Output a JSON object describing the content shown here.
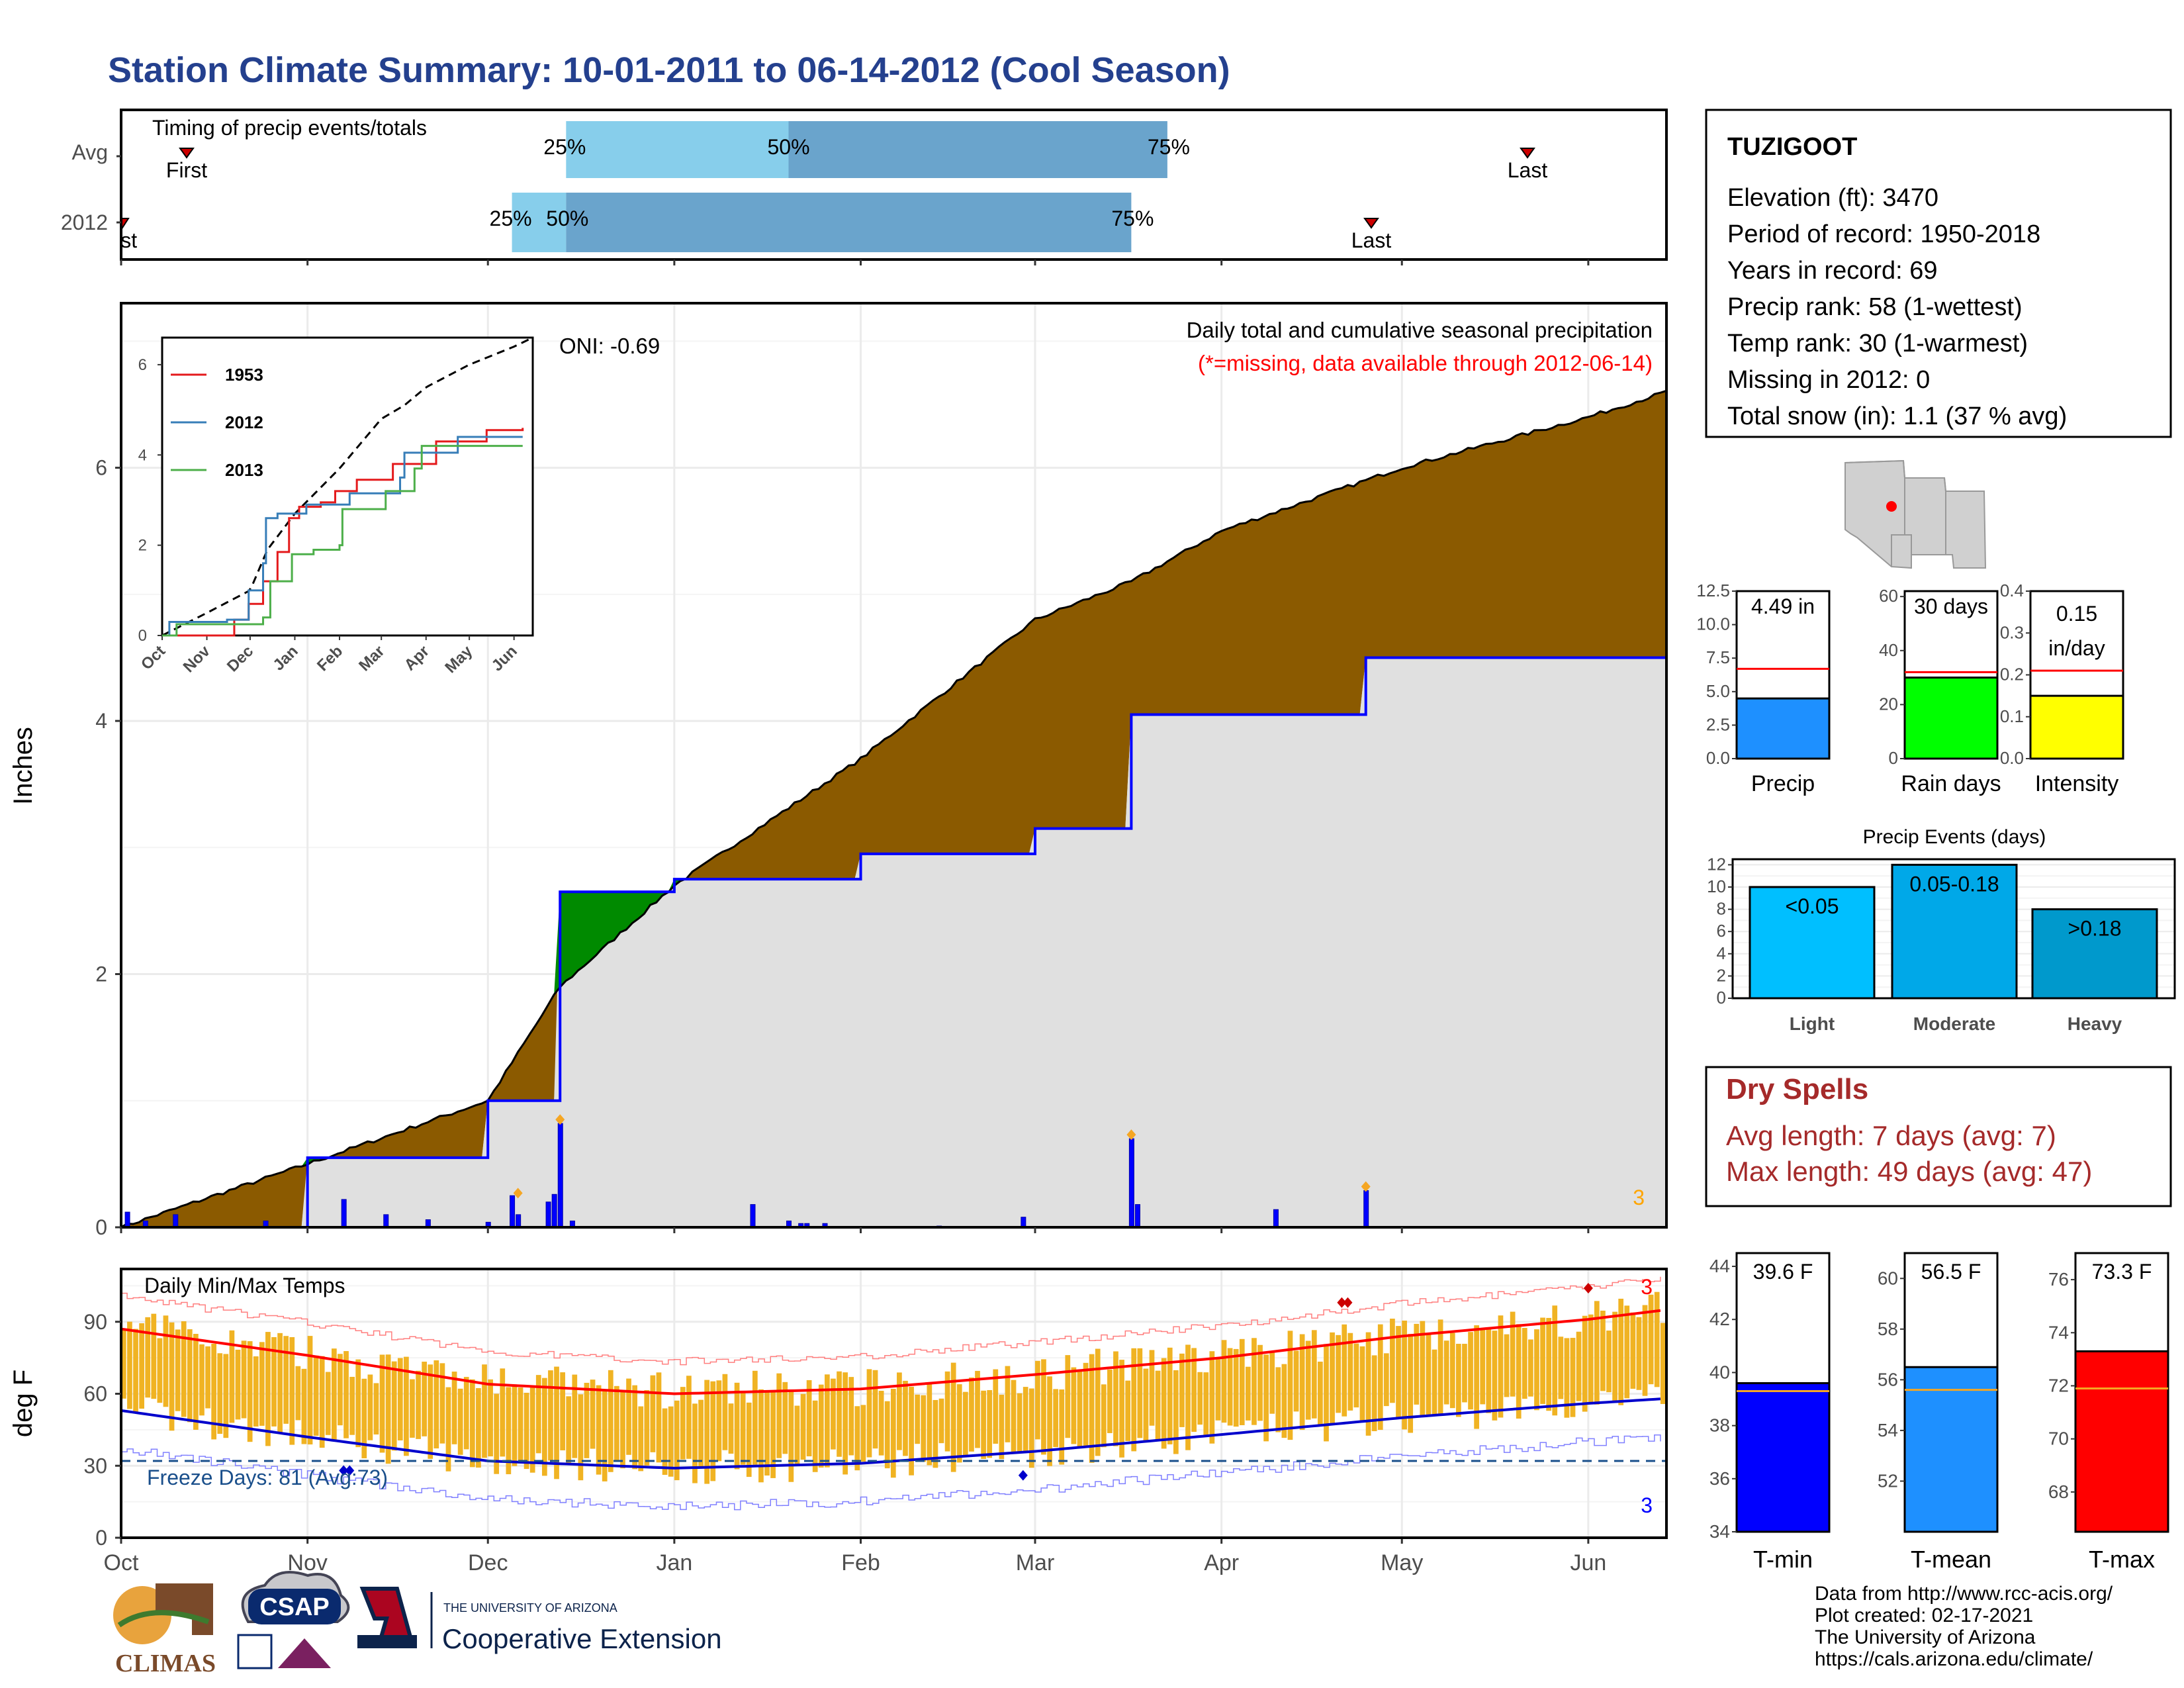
{
  "title": "Station Climate Summary: 10-01-2011 to 06-14-2012 (Cool Season)",
  "colors": {
    "title": "#24408e",
    "cumulative_above": "#8b5a00",
    "cumulative_green": "#008a00",
    "normal_fill": "#e0e0e0",
    "daily_bar": "#0000ff",
    "temp_bar": "#f0b323",
    "precip_bar": "#1e90ff",
    "raindays_bar": "#00ff00",
    "intensity_bar": "#ffff00",
    "light_bar": "#00bfff",
    "moderate_bar": "#00a8e8",
    "heavy_bar": "#0099cc",
    "tmin_bar": "#0000ff",
    "tmean_bar": "#1e90ff",
    "tmax_bar": "#ff0000",
    "dry_spell_text": "#a52a2a"
  },
  "timing_panel": {
    "label": "Timing of precip events/totals",
    "rows": [
      {
        "label": "Avg",
        "first": "First",
        "last": "Last",
        "p25": "25%",
        "p50": "50%",
        "p75": "75%"
      },
      {
        "label": "2012",
        "first": "First",
        "last": "Last",
        "p25": "25%",
        "p50": "50%",
        "p75": "75%"
      }
    ]
  },
  "precip_panel": {
    "ylabel": "Inches",
    "yticks": [
      "0",
      "2",
      "4",
      "6"
    ],
    "header": "Daily total and cumulative seasonal precipitation",
    "missing_note": "(*=missing, data available through 2012-06-14)",
    "oni": "ONI: -0.69",
    "corner_count": "3"
  },
  "inset": {
    "yticks": [
      "0",
      "2",
      "4",
      "6"
    ],
    "xticks": [
      "Oct",
      "Nov",
      "Dec",
      "Jan",
      "Feb",
      "Mar",
      "Apr",
      "May",
      "Jun"
    ],
    "legend": [
      {
        "name": "1953",
        "color": "#e41a1c"
      },
      {
        "name": "2012",
        "color": "#377eb8"
      },
      {
        "name": "2013",
        "color": "#4daf4a"
      }
    ]
  },
  "temp_panel": {
    "ylabel": "deg F",
    "label": "Daily Min/Max Temps",
    "freeze_label": "Freeze Days: 81 (Avg:73)",
    "yticks": [
      "0",
      "30",
      "60",
      "90"
    ],
    "red_count": "3",
    "blue_count": "3"
  },
  "x_months": [
    "Oct",
    "Nov",
    "Dec",
    "Jan",
    "Feb",
    "Mar",
    "Apr",
    "May",
    "Jun"
  ],
  "station": {
    "name": "TUZIGOOT",
    "lines": [
      "Elevation (ft): 3470",
      "Period of record: 1950-2018",
      "Years in record: 69",
      "Precip rank: 58 (1-wettest)",
      "Temp rank: 30 (1-warmest)",
      "Missing in 2012: 0",
      "Total snow (in): 1.1 (37 % avg)"
    ]
  },
  "mini_bars": [
    {
      "label": "Precip",
      "value_text": "4.49 in",
      "value": 4.49,
      "avg": 6.7,
      "max": 12.5,
      "yticks": [
        "0.0",
        "2.5",
        "5.0",
        "7.5",
        "10.0",
        "12.5"
      ],
      "color": "#1e90ff"
    },
    {
      "label": "Rain days",
      "value_text": "30 days",
      "value": 30,
      "avg": 32,
      "max": 62,
      "yticks": [
        "0",
        "20",
        "40",
        "60"
      ],
      "color": "#00ff00"
    },
    {
      "label": "Intensity",
      "value_text": "0.15 in/day",
      "value": 0.15,
      "avg": 0.21,
      "max": 0.4,
      "yticks": [
        "0.0",
        "0.1",
        "0.2",
        "0.3",
        "0.4"
      ],
      "color": "#ffff00"
    }
  ],
  "precip_events": {
    "title": "Precip Events (days)",
    "yticks": [
      "0",
      "2",
      "4",
      "6",
      "8",
      "10",
      "12"
    ],
    "bars": [
      {
        "label": "Light",
        "range": "<0.05",
        "value": 10
      },
      {
        "label": "Moderate",
        "range": "0.05-0.18",
        "value": 12
      },
      {
        "label": "Heavy",
        "range": ">0.18",
        "value": 8
      }
    ]
  },
  "dry_spells": {
    "title": "Dry Spells",
    "avg_line": "Avg length: 7 days (avg: 7)",
    "max_line": "Max length: 49 days (avg: 47)"
  },
  "temp_bars": [
    {
      "label": "T-min",
      "value_text": "39.6 F",
      "value": 39.6,
      "avg": 39.3,
      "ymin": 34,
      "ymax": 44.5,
      "yticks": [
        "34",
        "36",
        "38",
        "40",
        "42",
        "44"
      ]
    },
    {
      "label": "T-mean",
      "value_text": "56.5 F",
      "value": 56.5,
      "avg": 55.6,
      "ymin": 50,
      "ymax": 61,
      "yticks": [
        "52",
        "54",
        "56",
        "58",
        "60"
      ]
    },
    {
      "label": "T-max",
      "value_text": "73.3 F",
      "value": 73.3,
      "avg": 71.9,
      "ymin": 66.5,
      "ymax": 77,
      "yticks": [
        "68",
        "70",
        "72",
        "74",
        "76"
      ]
    }
  ],
  "footer": {
    "lines": [
      "Data from http://www.rcc-acis.org/",
      "Plot created: 02-17-2021",
      "The University of Arizona",
      "https://cals.arizona.edu/climate/"
    ],
    "logo_climas": "CLIMAS",
    "logo_csap": "CSAP",
    "logo_ua_small": "THE UNIVERSITY OF ARIZONA",
    "logo_ua_big": "Cooperative Extension"
  },
  "chart_data": {
    "type": "area",
    "title": "Daily total and cumulative seasonal precipitation",
    "ylabel": "Inches",
    "ylim": [
      0,
      7.3
    ],
    "x": [
      "2011-10-01",
      "2011-11-01",
      "2011-12-01",
      "2011-12-13",
      "2012-01-01",
      "2012-02-01",
      "2012-03-01",
      "2012-03-17",
      "2012-04-01",
      "2012-04-25",
      "2012-05-01",
      "2012-06-01",
      "2012-06-14"
    ],
    "series": [
      {
        "name": "cumulative average",
        "values": [
          0.0,
          0.5,
          1.0,
          1.9,
          2.7,
          3.7,
          4.8,
          5.1,
          5.5,
          5.9,
          6.0,
          6.4,
          6.6
        ]
      },
      {
        "name": "cumulative 2012",
        "values": [
          0.0,
          0.55,
          1.0,
          2.65,
          2.75,
          2.95,
          3.15,
          4.05,
          4.05,
          4.5,
          4.5,
          4.5,
          4.5
        ]
      }
    ],
    "daily_precip_peaks": [
      {
        "date": "2011-12-13",
        "value": 0.82
      },
      {
        "date": "2012-03-17",
        "value": 0.7
      },
      {
        "date": "2012-04-25",
        "value": 0.29
      }
    ],
    "temperature": {
      "ylabel": "deg F",
      "ylim": [
        0,
        112
      ],
      "avg_max_x": [
        "2011-10-01",
        "2011-11-01",
        "2011-12-01",
        "2012-01-01",
        "2012-02-01",
        "2012-03-01",
        "2012-04-01",
        "2012-05-01",
        "2012-06-01",
        "2012-06-14"
      ],
      "avg_max": [
        87,
        76,
        64,
        60,
        62,
        68,
        75,
        84,
        91,
        95
      ],
      "avg_min": [
        53,
        42,
        32,
        29,
        31,
        36,
        43,
        50,
        56,
        58
      ],
      "freeze_line": 32
    }
  }
}
